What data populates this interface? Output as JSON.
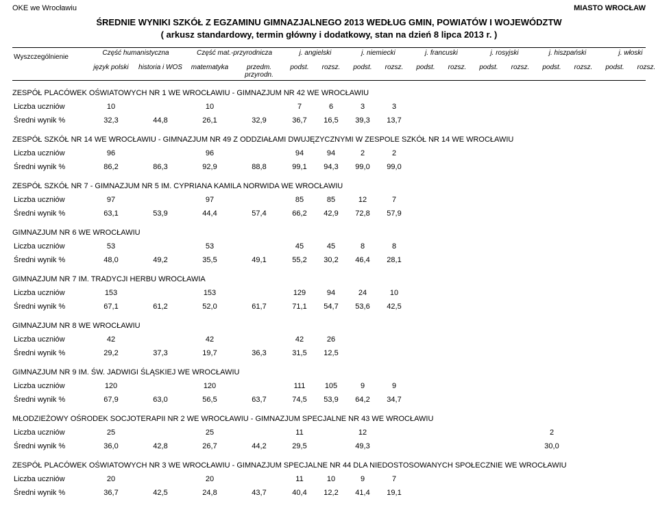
{
  "header": {
    "left": "OKE we Wrocławiu",
    "right": "MIASTO WROCŁAW",
    "title1": "ŚREDNIE WYNIKI SZKÓŁ Z EGZAMINU GIMNAZJALNEGO 2013 WEDŁUG GMIN, POWIATÓW I WOJEWÓDZTW",
    "title2": "( arkusz standardowy, termin główny i dodatkowy, stan na dzień 8 lipca 2013 r. )"
  },
  "columns": {
    "rowLabel": "Wyszczególnienie",
    "groups": [
      {
        "label": "Część humanistyczna",
        "sub": [
          "język polski",
          "historia i WOS"
        ]
      },
      {
        "label": "Część mat.-przyrodnicza",
        "sub": [
          "matematyka",
          "przedm. przyrodn."
        ]
      },
      {
        "label": "j. angielski",
        "sub": [
          "podst.",
          "rozsz."
        ]
      },
      {
        "label": "j. niemiecki",
        "sub": [
          "podst.",
          "rozsz."
        ]
      },
      {
        "label": "j. francuski",
        "sub": [
          "podst.",
          "rozsz."
        ]
      },
      {
        "label": "j. rosyjski",
        "sub": [
          "podst.",
          "rozsz."
        ]
      },
      {
        "label": "j. hiszpański",
        "sub": [
          "podst.",
          "rozsz."
        ]
      },
      {
        "label": "j. włoski",
        "sub": [
          "podst.",
          "rozsz."
        ]
      }
    ]
  },
  "rowLabels": {
    "count": "Liczba uczniów",
    "avg": "Średni wynik %"
  },
  "schools": [
    {
      "name": "ZESPÓŁ PLACÓWEK OŚWIATOWYCH NR 1 WE WROCŁAWIU - GIMNAZJUM NR 42 WE WROCŁAWIU",
      "count": [
        "10",
        "",
        "10",
        "",
        "7",
        "6",
        "3",
        "3",
        "",
        "",
        "",
        "",
        "",
        "",
        "",
        ""
      ],
      "avg": [
        "32,3",
        "44,8",
        "26,1",
        "32,9",
        "36,7",
        "16,5",
        "39,3",
        "13,7",
        "",
        "",
        "",
        "",
        "",
        "",
        "",
        ""
      ]
    },
    {
      "name": "ZESPÓŁ SZKÓŁ NR 14 WE WROCŁAWIU - GIMNAZJUM NR 49 Z ODDZIAŁAMI DWUJĘZYCZNYMI W ZESPOLE SZKÓŁ NR 14 WE WROCŁAWIU",
      "count": [
        "96",
        "",
        "96",
        "",
        "94",
        "94",
        "2",
        "2",
        "",
        "",
        "",
        "",
        "",
        "",
        "",
        ""
      ],
      "avg": [
        "86,2",
        "86,3",
        "92,9",
        "88,8",
        "99,1",
        "94,3",
        "99,0",
        "99,0",
        "",
        "",
        "",
        "",
        "",
        "",
        "",
        ""
      ]
    },
    {
      "name": "ZESPÓŁ SZKÓŁ NR 7 - GIMNAZJUM NR 5 IM. CYPRIANA KAMILA NORWIDA WE WROCŁAWIU",
      "count": [
        "97",
        "",
        "97",
        "",
        "85",
        "85",
        "12",
        "7",
        "",
        "",
        "",
        "",
        "",
        "",
        "",
        ""
      ],
      "avg": [
        "63,1",
        "53,9",
        "44,4",
        "57,4",
        "66,2",
        "42,9",
        "72,8",
        "57,9",
        "",
        "",
        "",
        "",
        "",
        "",
        "",
        ""
      ]
    },
    {
      "name": "GIMNAZJUM NR 6 WE WROCŁAWIU",
      "count": [
        "53",
        "",
        "53",
        "",
        "45",
        "45",
        "8",
        "8",
        "",
        "",
        "",
        "",
        "",
        "",
        "",
        ""
      ],
      "avg": [
        "48,0",
        "49,2",
        "35,5",
        "49,1",
        "55,2",
        "30,2",
        "46,4",
        "28,1",
        "",
        "",
        "",
        "",
        "",
        "",
        "",
        ""
      ]
    },
    {
      "name": "GIMNAZJUM NR 7 IM. TRADYCJI HERBU WROCŁAWIA",
      "count": [
        "153",
        "",
        "153",
        "",
        "129",
        "94",
        "24",
        "10",
        "",
        "",
        "",
        "",
        "",
        "",
        "",
        ""
      ],
      "avg": [
        "67,1",
        "61,2",
        "52,0",
        "61,7",
        "71,1",
        "54,7",
        "53,6",
        "42,5",
        "",
        "",
        "",
        "",
        "",
        "",
        "",
        ""
      ]
    },
    {
      "name": "GIMNAZJUM NR 8 WE WROCŁAWIU",
      "count": [
        "42",
        "",
        "42",
        "",
        "42",
        "26",
        "",
        "",
        "",
        "",
        "",
        "",
        "",
        "",
        "",
        ""
      ],
      "avg": [
        "29,2",
        "37,3",
        "19,7",
        "36,3",
        "31,5",
        "12,5",
        "",
        "",
        "",
        "",
        "",
        "",
        "",
        "",
        "",
        ""
      ]
    },
    {
      "name": "GIMNAZJUM NR 9 IM. ŚW. JADWIGI ŚLĄSKIEJ WE WROCŁAWIU",
      "count": [
        "120",
        "",
        "120",
        "",
        "111",
        "105",
        "9",
        "9",
        "",
        "",
        "",
        "",
        "",
        "",
        "",
        ""
      ],
      "avg": [
        "67,9",
        "63,0",
        "56,5",
        "63,7",
        "74,5",
        "53,9",
        "64,2",
        "34,7",
        "",
        "",
        "",
        "",
        "",
        "",
        "",
        ""
      ]
    },
    {
      "name": "MŁODZIEŻOWY OŚRODEK SOCJOTERAPII NR 2 WE WROCŁAWIU - GIMNAZJUM SPECJALNE NR 43 WE WROCŁAWIU",
      "count": [
        "25",
        "",
        "25",
        "",
        "11",
        "",
        "12",
        "",
        "",
        "",
        "",
        "",
        "2",
        "",
        "",
        ""
      ],
      "avg": [
        "36,0",
        "42,8",
        "26,7",
        "44,2",
        "29,5",
        "",
        "49,3",
        "",
        "",
        "",
        "",
        "",
        "30,0",
        "",
        "",
        ""
      ]
    },
    {
      "name": "ZESPÓŁ PLACÓWEK OŚWIATOWYCH NR 3 WE WROCŁAWIU - GIMNAZJUM SPECJALNE NR 44 DLA NIEDOSTOSOWANYCH SPOŁECZNIE WE WROCŁAWIU",
      "count": [
        "20",
        "",
        "20",
        "",
        "11",
        "10",
        "9",
        "7",
        "",
        "",
        "",
        "",
        "",
        "",
        "",
        ""
      ],
      "avg": [
        "36,7",
        "42,5",
        "24,8",
        "43,7",
        "40,4",
        "12,2",
        "41,4",
        "19,1",
        "",
        "",
        "",
        "",
        "",
        "",
        "",
        ""
      ]
    }
  ]
}
